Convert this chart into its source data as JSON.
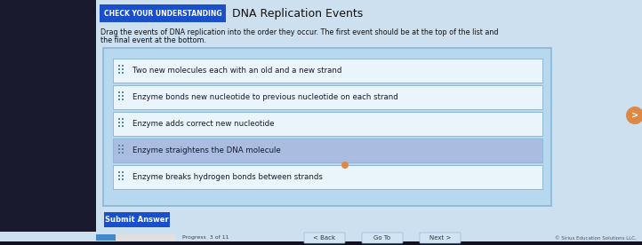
{
  "bg_outer_left": "#1a1a2e",
  "bg_panel": "#cce0f0",
  "header_box_color": "#1a4fcc",
  "header_box_text": "CHECK YOUR UNDERSTANDING",
  "header_title": "DNA Replication Events",
  "instruction_line1": "Drag the events of DNA replication into the order they occur. The first event should be at the top of the list and",
  "instruction_line2": "the final event at the bottom.",
  "items": [
    "Two new molecules each with an old and a new strand",
    "Enzyme bonds new nucleotide to previous nucleotide on each strand",
    "Enzyme adds correct new nucleotide",
    "Enzyme straightens the DNA molecule",
    "Enzyme breaks hydrogen bonds between strands"
  ],
  "item_bg_normal": "#eaf4fb",
  "item_bg_highlighted": "#aabcdf",
  "item_border": "#90b8d8",
  "item_text_color": "#1a1a2e",
  "item_highlighted_index": 3,
  "submit_btn_color": "#1a4fcc",
  "submit_btn_text": "Submit Answer",
  "submit_btn_text_color": "#ffffff",
  "footer_bg": "#cce0f0",
  "progress_bar_bg": "#4488cc",
  "progress_bar_track": "#e0e0e0",
  "progress_text": "Progress  3 of 11",
  "back_text": "< Back",
  "goto_text": "Go To",
  "next_text": "Next >",
  "copyright_text": "© Sirius Education Solutions LLC.",
  "drag_icon_color": "#5588aa",
  "dd_panel_bg": "#b8d8f0",
  "dd_panel_border": "#88b8d8",
  "right_circle_color": "#dd8844"
}
